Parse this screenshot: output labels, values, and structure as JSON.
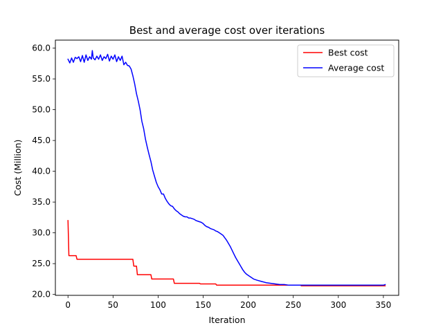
{
  "chart_data": {
    "type": "line",
    "title": "Best and average cost over iterations",
    "xlabel": "Iteration",
    "ylabel": "Cost (Million)",
    "xlim": [
      -14,
      367
    ],
    "ylim": [
      19.85,
      61.3
    ],
    "xticks": [
      0,
      50,
      100,
      150,
      200,
      250,
      300,
      350
    ],
    "xtick_labels": [
      "0",
      "50",
      "100",
      "150",
      "200",
      "250",
      "300",
      "350"
    ],
    "yticks": [
      20,
      25,
      30,
      35,
      40,
      45,
      50,
      55,
      60
    ],
    "ytick_labels": [
      "20.0",
      "25.0",
      "30.0",
      "35.0",
      "40.0",
      "45.0",
      "50.0",
      "55.0",
      "60.0"
    ],
    "grid": false,
    "legend_position": "top-right",
    "series": [
      {
        "name": "Best cost",
        "color": "#ff0000",
        "x": [
          0,
          1,
          9,
          10,
          72,
          73,
          76,
          77,
          92,
          93,
          117,
          118,
          146,
          147,
          164,
          165,
          258,
          259,
          352
        ],
        "y": [
          32.0,
          26.3,
          26.3,
          25.7,
          25.7,
          24.6,
          24.6,
          23.2,
          23.2,
          22.5,
          22.5,
          21.8,
          21.8,
          21.7,
          21.7,
          21.5,
          21.5,
          21.4,
          21.4
        ]
      },
      {
        "name": "Average cost",
        "color": "#0000ff",
        "x": [
          0,
          2,
          4,
          6,
          8,
          10,
          12,
          14,
          16,
          18,
          20,
          22,
          24,
          26,
          27,
          28,
          30,
          32,
          34,
          36,
          38,
          40,
          42,
          44,
          46,
          48,
          50,
          52,
          54,
          56,
          58,
          60,
          62,
          64,
          66,
          68,
          70,
          72,
          74,
          76,
          78,
          80,
          82,
          84,
          86,
          88,
          90,
          92,
          94,
          96,
          98,
          100,
          102,
          104,
          106,
          108,
          110,
          112,
          114,
          116,
          118,
          120,
          122,
          124,
          126,
          128,
          130,
          132,
          134,
          136,
          138,
          140,
          142,
          144,
          146,
          148,
          150,
          152,
          154,
          156,
          158,
          160,
          162,
          164,
          166,
          168,
          170,
          172,
          174,
          176,
          178,
          180,
          182,
          184,
          186,
          188,
          190,
          192,
          194,
          196,
          198,
          200,
          202,
          204,
          206,
          208,
          210,
          215,
          220,
          225,
          230,
          235,
          240,
          245,
          250,
          255,
          260,
          270,
          280,
          290,
          300,
          310,
          320,
          330,
          340,
          350,
          352
        ],
        "y": [
          58.2,
          57.6,
          58.4,
          57.7,
          58.5,
          58.3,
          58.6,
          57.8,
          58.8,
          57.7,
          58.9,
          58.0,
          58.6,
          58.2,
          59.6,
          58.4,
          58.1,
          58.7,
          58.2,
          58.9,
          58.0,
          58.6,
          58.3,
          59.0,
          57.9,
          58.7,
          58.2,
          58.9,
          57.8,
          58.6,
          58.0,
          58.7,
          57.3,
          57.7,
          57.2,
          57.1,
          56.6,
          55.5,
          54.2,
          52.6,
          51.4,
          50.0,
          48.1,
          46.9,
          45.2,
          43.9,
          42.7,
          41.6,
          40.2,
          39.2,
          38.2,
          37.5,
          37.0,
          36.3,
          36.3,
          35.6,
          35.1,
          34.7,
          34.4,
          34.3,
          33.9,
          33.6,
          33.4,
          33.1,
          32.9,
          32.7,
          32.6,
          32.6,
          32.4,
          32.4,
          32.3,
          32.2,
          32.0,
          31.9,
          31.8,
          31.7,
          31.5,
          31.2,
          31.0,
          30.9,
          30.7,
          30.6,
          30.5,
          30.3,
          30.2,
          30.0,
          29.8,
          29.6,
          29.2,
          28.8,
          28.3,
          27.8,
          27.2,
          26.6,
          26.0,
          25.5,
          25.0,
          24.5,
          24.0,
          23.6,
          23.3,
          23.1,
          22.9,
          22.7,
          22.5,
          22.4,
          22.3,
          22.1,
          21.9,
          21.8,
          21.7,
          21.6,
          21.6,
          21.5,
          21.5,
          21.5,
          21.5,
          21.5,
          21.5,
          21.5,
          21.5,
          21.5,
          21.5,
          21.5,
          21.5,
          21.5,
          21.6
        ]
      }
    ]
  }
}
